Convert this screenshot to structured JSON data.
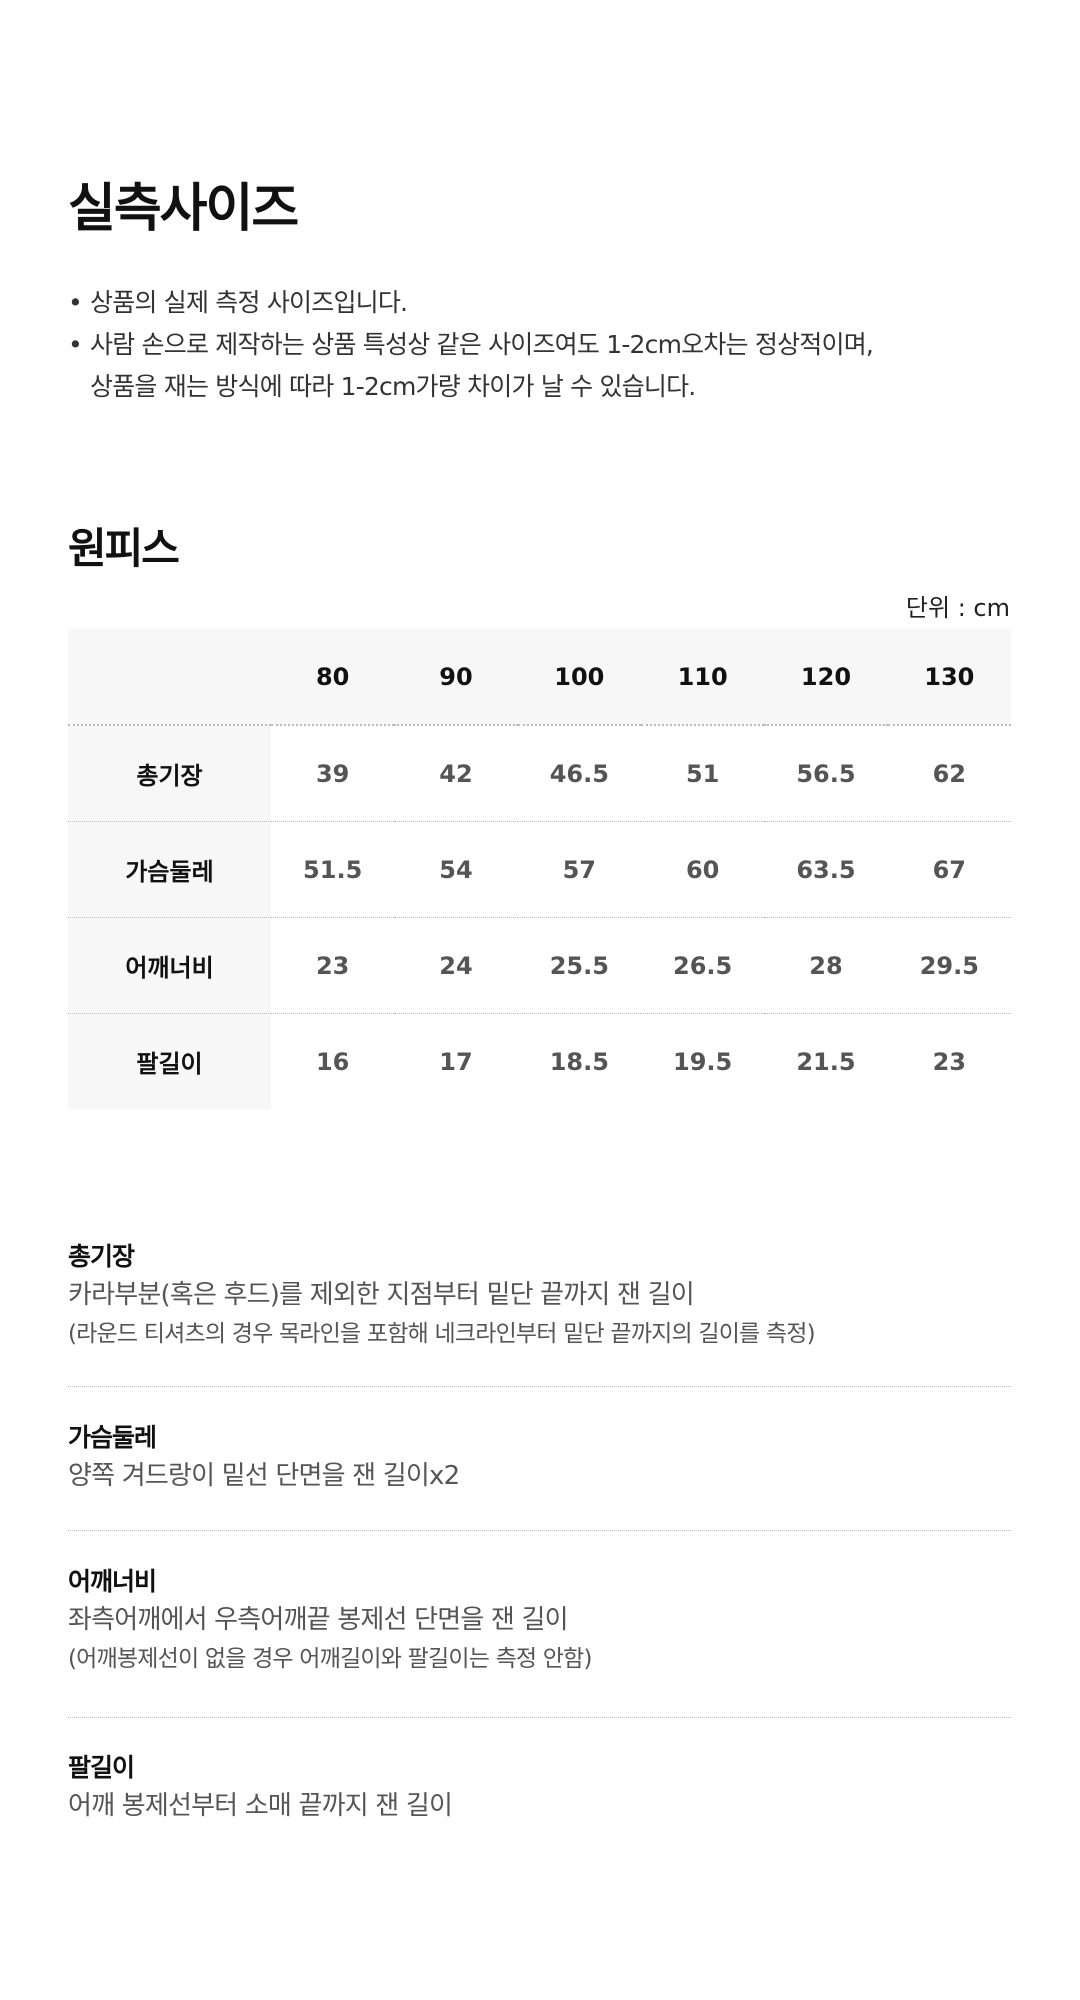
{
  "title": "실측사이즈",
  "notes": [
    "상품의 실제 측정 사이즈입니다.",
    "사람 손으로 제작하는 상품 특성상 같은 사이즈여도 1-2cm오차는 정상적이며,",
    "상품을 재는 방식에 따라 1-2cm가량 차이가 날 수 있습니다."
  ],
  "section_title": "원피스",
  "unit_label": "단위 : cm",
  "table": {
    "columns": [
      "",
      "80",
      "90",
      "100",
      "110",
      "120",
      "130"
    ],
    "rows": [
      {
        "label": "총기장",
        "values": [
          "39",
          "42",
          "46.5",
          "51",
          "56.5",
          "62"
        ]
      },
      {
        "label": "가슴둘레",
        "values": [
          "51.5",
          "54",
          "57",
          "60",
          "63.5",
          "67"
        ]
      },
      {
        "label": "어깨너비",
        "values": [
          "23",
          "24",
          "25.5",
          "26.5",
          "28",
          "29.5"
        ]
      },
      {
        "label": "팔길이",
        "values": [
          "16",
          "17",
          "18.5",
          "19.5",
          "21.5",
          "23"
        ]
      }
    ]
  },
  "definitions": [
    {
      "term": "총기장",
      "desc": "카라부분(혹은 후드)를 제외한 지점부터 밑단 끝까지 잰 길이",
      "note": "(라운드 티셔츠의 경우 목라인을 포함해 네크라인부터 밑단 끝까지의 길이를 측정)"
    },
    {
      "term": "가슴둘레",
      "desc": "양쪽 겨드랑이 밑선 단면을 잰 길이x2"
    },
    {
      "term": "어깨너비",
      "desc": "좌측어깨에서 우측어깨끝 봉제선 단면을 잰 길이",
      "note": "(어깨봉제선이 없을 경우 어깨길이와 팔길이는 측정 안함)"
    },
    {
      "term": "팔길이",
      "desc": "어깨 봉제선부터 소매 끝까지 잰 길이"
    }
  ]
}
